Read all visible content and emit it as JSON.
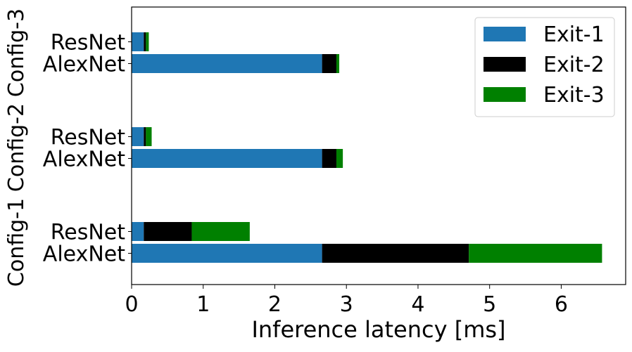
{
  "chart_data": {
    "type": "bar",
    "orientation": "horizontal",
    "stacked": true,
    "xlabel": "Inference latency [ms]",
    "ylabel": "",
    "xlim": [
      0,
      6.9
    ],
    "xticks": [
      0,
      1,
      2,
      3,
      4,
      5,
      6
    ],
    "grid": false,
    "legend_placement": "top-right",
    "series": [
      {
        "name": "Exit-1",
        "color": "#1f77b4"
      },
      {
        "name": "Exit-2",
        "color": "#000000"
      },
      {
        "name": "Exit-3",
        "color": "#008000"
      }
    ],
    "groups": [
      {
        "name": "Config-1",
        "bars": [
          {
            "label": "AlexNet",
            "values": [
              2.66,
              2.05,
              1.86
            ]
          },
          {
            "label": "ResNet",
            "values": [
              0.17,
              0.67,
              0.81
            ]
          }
        ]
      },
      {
        "name": "Config-2",
        "bars": [
          {
            "label": "AlexNet",
            "values": [
              2.66,
              0.2,
              0.09
            ]
          },
          {
            "label": "ResNet",
            "values": [
              0.17,
              0.03,
              0.08
            ]
          }
        ]
      },
      {
        "name": "Config-3",
        "bars": [
          {
            "label": "AlexNet",
            "values": [
              2.66,
              0.2,
              0.04
            ]
          },
          {
            "label": "ResNet",
            "values": [
              0.17,
              0.03,
              0.04
            ]
          }
        ]
      }
    ]
  }
}
